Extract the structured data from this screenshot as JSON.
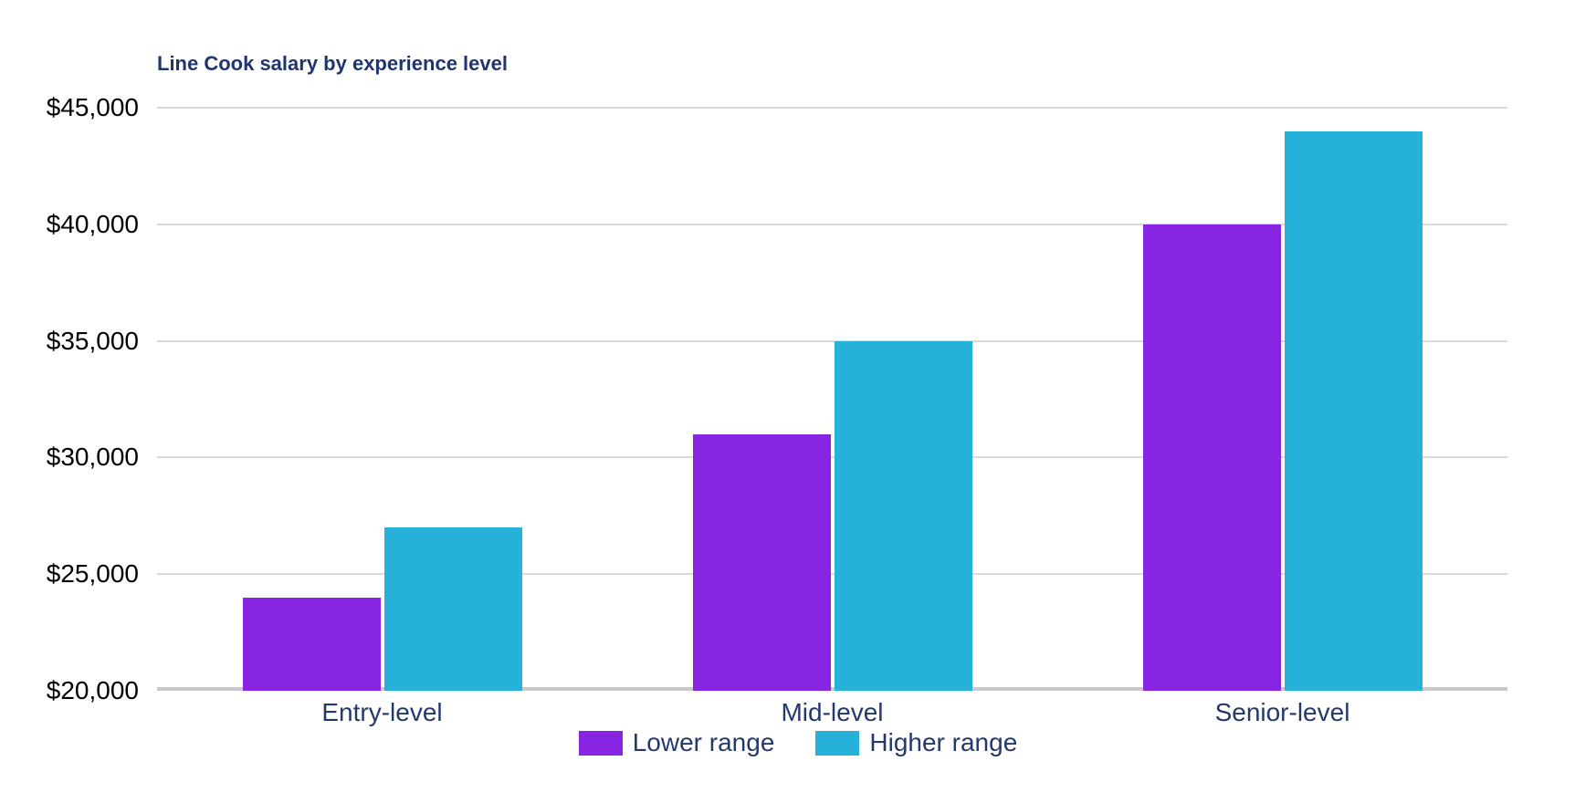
{
  "chart_data": {
    "type": "bar",
    "title": "Line Cook salary by experience level",
    "categories": [
      "Entry-level",
      "Mid-level",
      "Senior-level"
    ],
    "series": [
      {
        "name": "Lower range",
        "color": "#8825e2",
        "values": [
          24000,
          31000,
          40000
        ]
      },
      {
        "name": "Higher range",
        "color": "#26b2d8",
        "values": [
          27000,
          35000,
          44000
        ]
      }
    ],
    "ylim": [
      20000,
      45000
    ],
    "y_ticks": [
      {
        "value": 45000,
        "label": "$45,000"
      },
      {
        "value": 40000,
        "label": "$40,000"
      },
      {
        "value": 35000,
        "label": "$35,000"
      },
      {
        "value": 30000,
        "label": "$30,000"
      },
      {
        "value": 25000,
        "label": "$25,000"
      },
      {
        "value": 20000,
        "label": "$20,000"
      }
    ],
    "grid": "horizontal-only",
    "legend_position": "bottom-center",
    "colors": {
      "title_text": "#1f356b",
      "axis_tick_text": "#000000",
      "category_text": "#23386b",
      "legend_text": "#23386b",
      "gridline": "#d9d9d9",
      "axis_line": "#c9c9c9",
      "background": "#ffffff"
    }
  }
}
